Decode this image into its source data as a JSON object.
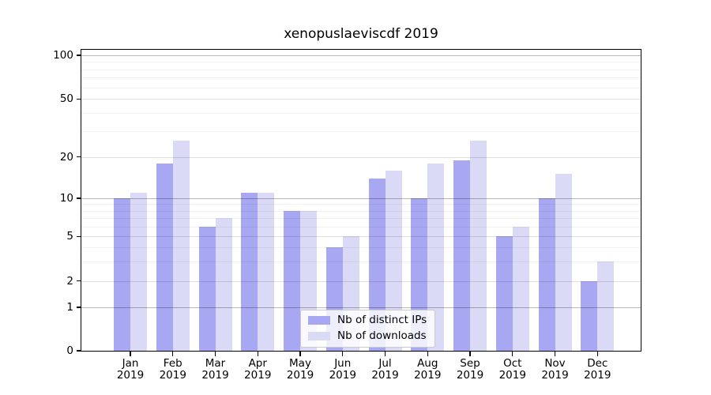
{
  "chart_data": {
    "type": "bar",
    "title": "xenopuslaeviscdf 2019",
    "year_label": "2019",
    "categories": [
      "Jan",
      "Feb",
      "Mar",
      "Apr",
      "May",
      "Jun",
      "Jul",
      "Aug",
      "Sep",
      "Oct",
      "Nov",
      "Dec"
    ],
    "series": [
      {
        "name": "Nb of distinct IPs",
        "color": "#a8a8f2",
        "values": [
          10,
          18,
          6,
          11,
          8,
          4,
          14,
          10,
          19,
          5,
          10,
          2
        ]
      },
      {
        "name": "Nb of downloads",
        "color": "#dadaf7",
        "values": [
          11,
          26,
          7,
          11,
          8,
          5,
          16,
          18,
          26,
          6,
          15,
          3
        ]
      }
    ],
    "y_axis": {
      "scale": "log-like",
      "tick_labels": [
        "0",
        "1",
        "2",
        "5",
        "10",
        "20",
        "50",
        "100"
      ],
      "major_ticks": [
        0,
        1,
        2,
        5,
        10,
        20,
        50,
        100
      ],
      "emphasized_gridlines": [
        1,
        10,
        100
      ],
      "minor_gridlines": [
        3,
        4,
        6,
        7,
        8,
        9,
        30,
        40,
        60,
        70,
        80,
        90
      ]
    },
    "x_axis": {
      "label_format": "month over year, two lines"
    },
    "legend": {
      "position": "lower center",
      "items": [
        "Nb of distinct IPs",
        "Nb of downloads"
      ]
    },
    "grid": "horizontal only",
    "background": "#ffffff"
  }
}
